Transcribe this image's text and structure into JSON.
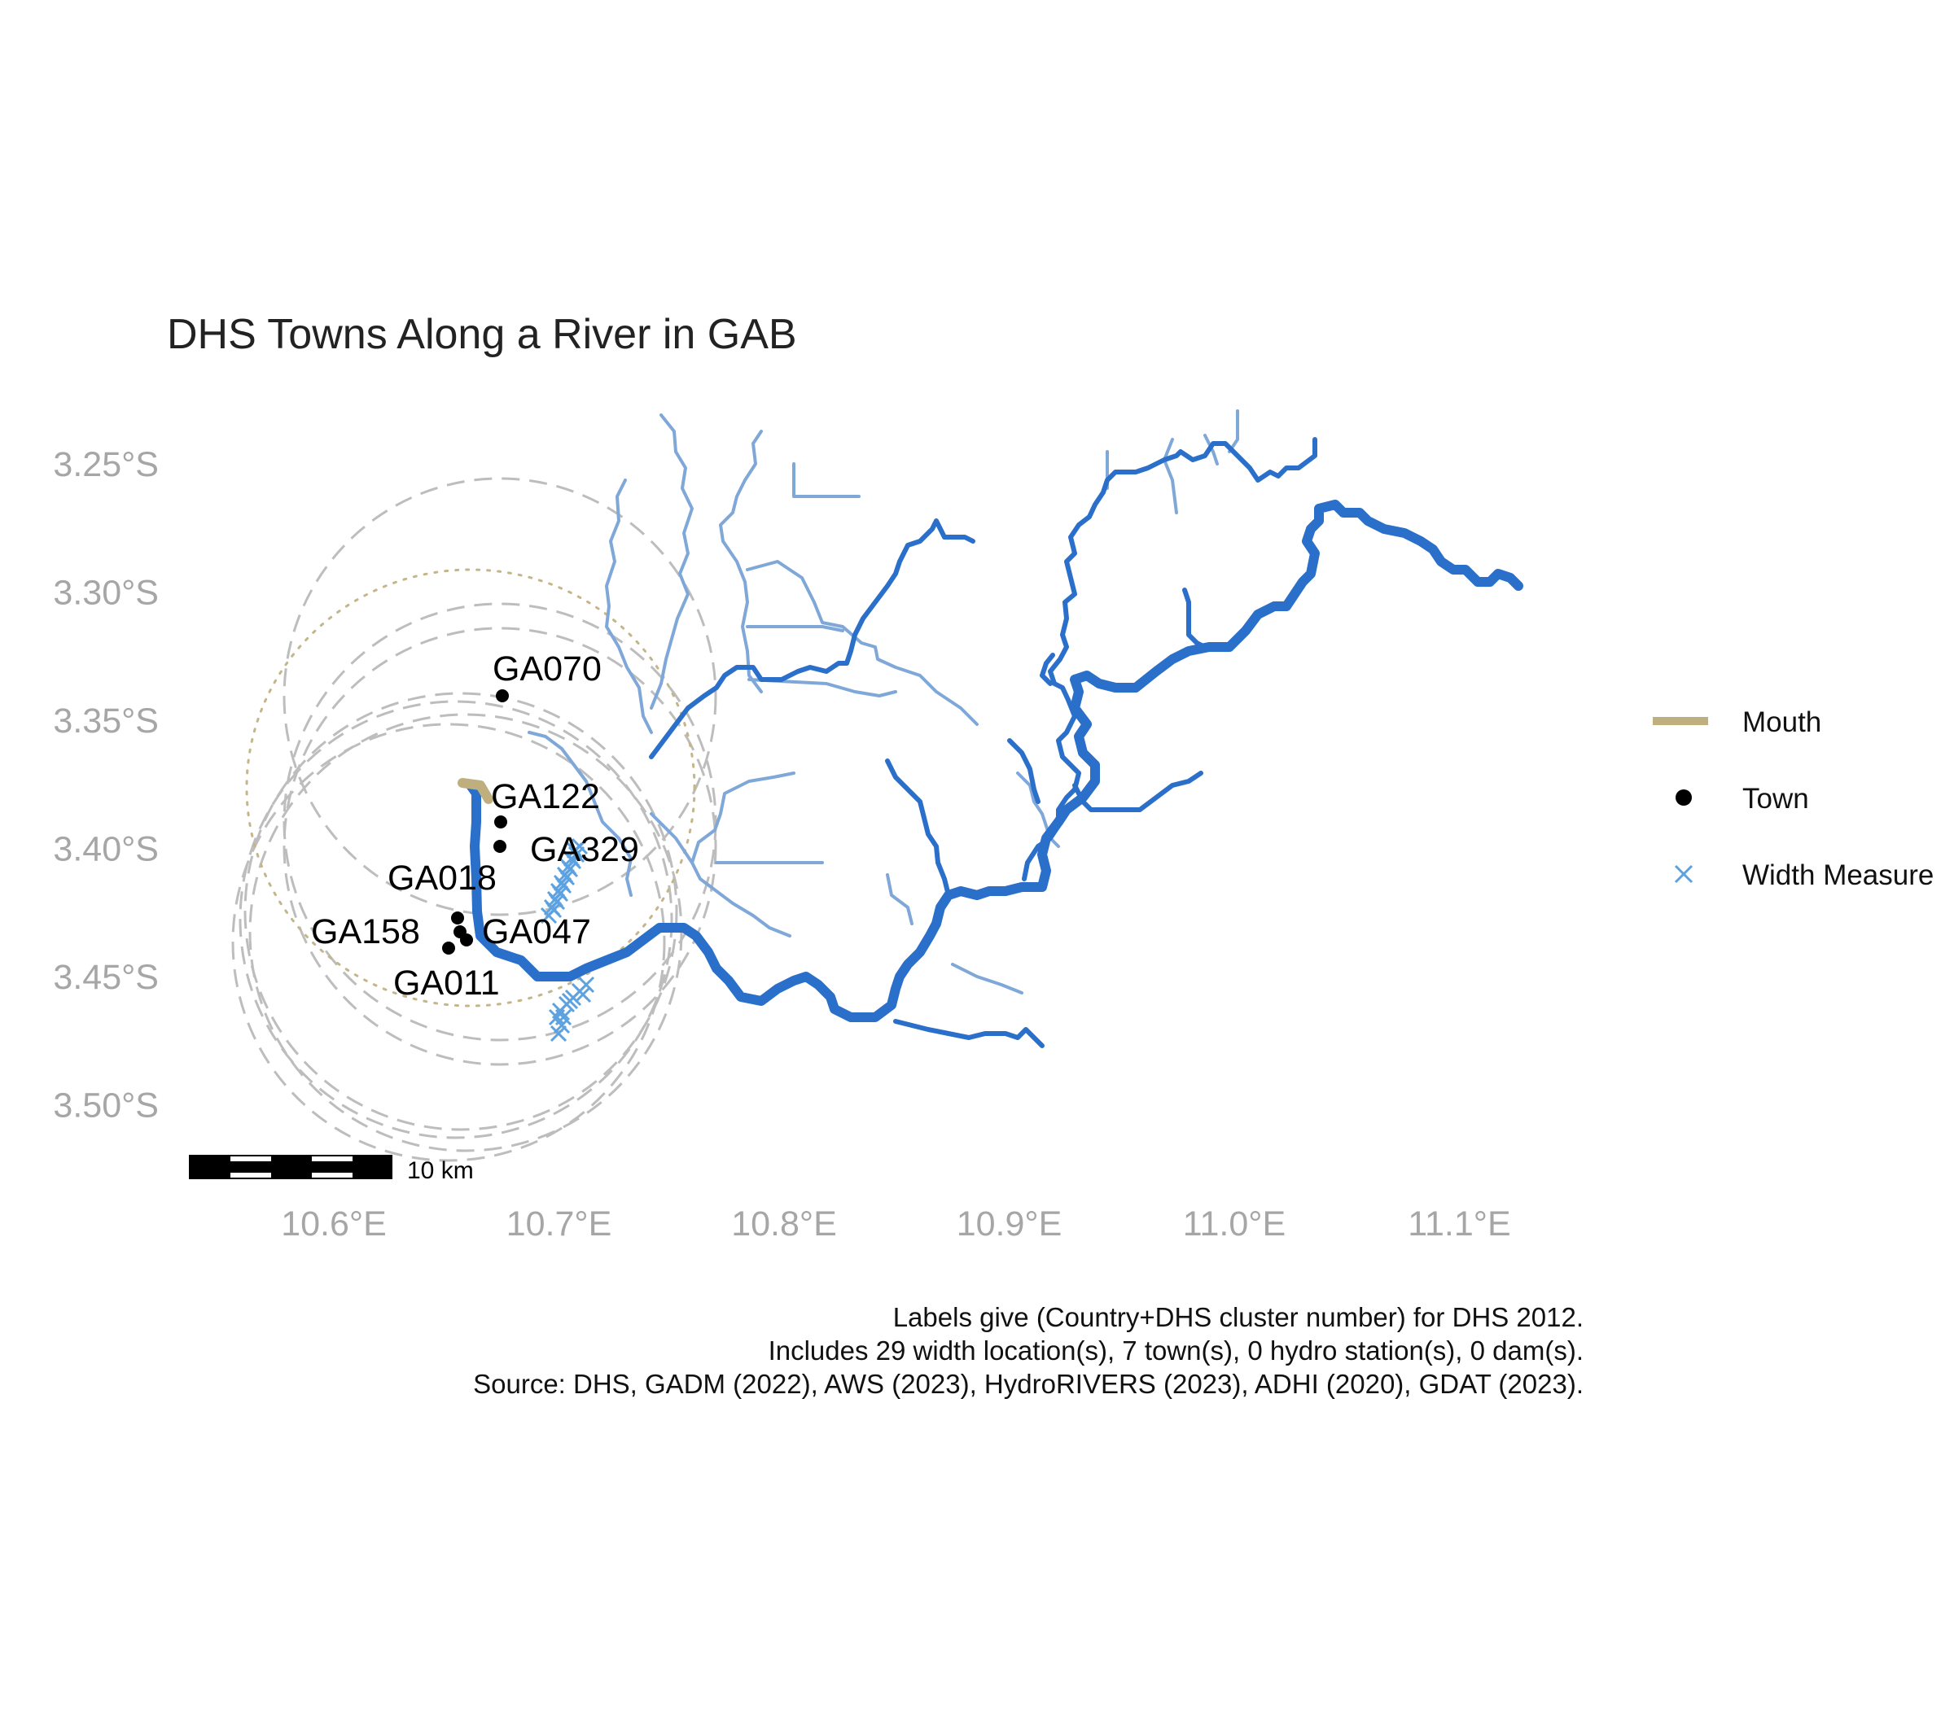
{
  "map": {
    "title": "DHS Towns Along a River in GAB",
    "lon_ticks": [
      {
        "value": 10.6,
        "label": "10.6°E"
      },
      {
        "value": 10.7,
        "label": "10.7°E"
      },
      {
        "value": 10.8,
        "label": "10.8°E"
      },
      {
        "value": 10.9,
        "label": "10.9°E"
      },
      {
        "value": 11.0,
        "label": "11.0°E"
      },
      {
        "value": 11.1,
        "label": "11.1°E"
      }
    ],
    "lat_ticks": [
      {
        "value": -3.25,
        "label": "3.25°S"
      },
      {
        "value": -3.3,
        "label": "3.30°S"
      },
      {
        "value": -3.35,
        "label": "3.35°S"
      },
      {
        "value": -3.4,
        "label": "3.40°S"
      },
      {
        "value": -3.45,
        "label": "3.45°S"
      },
      {
        "value": -3.5,
        "label": "3.50°S"
      }
    ],
    "lon_range": [
      10.53,
      11.15
    ],
    "lat_range": [
      -3.52,
      -3.225
    ],
    "colors": {
      "main_river": "#2a6fc9",
      "tributary": "#7fa8d8",
      "mouth": "#bfae7e",
      "town": "#000000",
      "width_measure": "#5ca2e0",
      "buffer": "#bdbdbd",
      "mouth_buffer": "#c4b68a"
    },
    "towns": [
      {
        "id": "GA070",
        "lon": 10.674,
        "lat": -3.339
      },
      {
        "id": "GA122",
        "lon": 10.673,
        "lat": -3.389
      },
      {
        "id": "GA329",
        "lon": 10.673,
        "lat": -3.398
      },
      {
        "id": "GA018",
        "lon": 10.655,
        "lat": -3.428
      },
      {
        "id": "GA158",
        "lon": 10.651,
        "lat": -3.438
      },
      {
        "id": "GA047",
        "lon": 10.66,
        "lat": -3.435
      },
      {
        "id": "GA011",
        "lon": 10.656,
        "lat": -3.433
      }
    ],
    "scale_bar": {
      "label": "10 km"
    },
    "legend": {
      "mouth_label": "Mouth",
      "town_label": "Town",
      "width_label": "Width Measure"
    }
  },
  "caption": {
    "line1": "Labels give (Country+DHS cluster number) for DHS 2012.",
    "line2": "Includes 29 width location(s), 7 town(s), 0 hydro station(s), 0 dam(s).",
    "line3": "Source: DHS, GADM (2022), AWS (2023), HydroRIVERS (2023), ADHI (2020), GDAT (2023)."
  }
}
